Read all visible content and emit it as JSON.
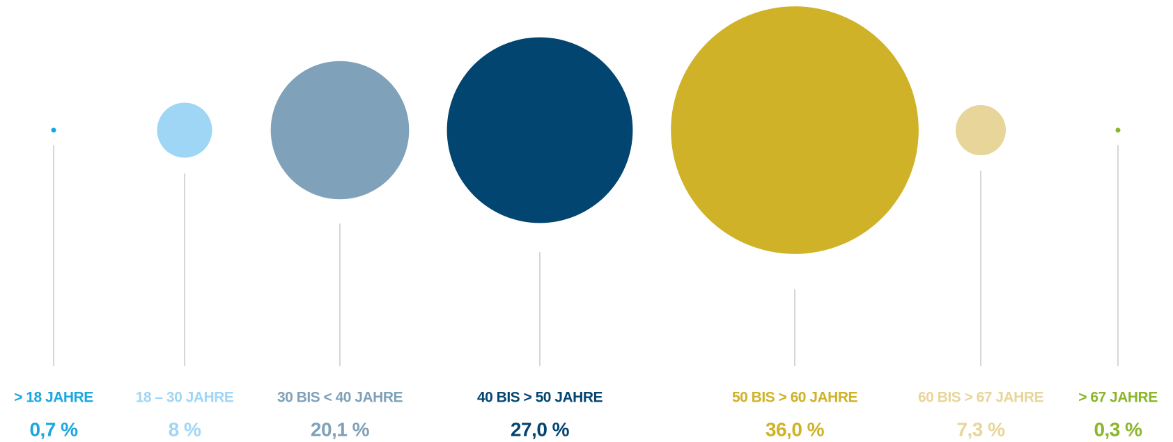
{
  "chart_data": {
    "type": "bubble",
    "categories": [
      "> 18 JAHRE",
      "18 – 30 JAHRE",
      "30 BIS < 40 JAHRE",
      "40 BIS > 50 JAHRE",
      "50 BIS > 60 JAHRE",
      "60 BIS > 67 JAHRE",
      "> 67 JAHRE"
    ],
    "values": [
      0.7,
      8,
      20.1,
      27.0,
      36.0,
      7.3,
      0.3
    ],
    "value_labels": [
      "0,7 %",
      "8 %",
      "20,1 %",
      "27,0 %",
      "36,0 %",
      "7,3 %",
      "0,3 %"
    ],
    "colors": [
      "#1aa7e0",
      "#9fd6f5",
      "#7fa1b9",
      "#034571",
      "#cfb227",
      "#e8d59a",
      "#8bb52a"
    ]
  }
}
